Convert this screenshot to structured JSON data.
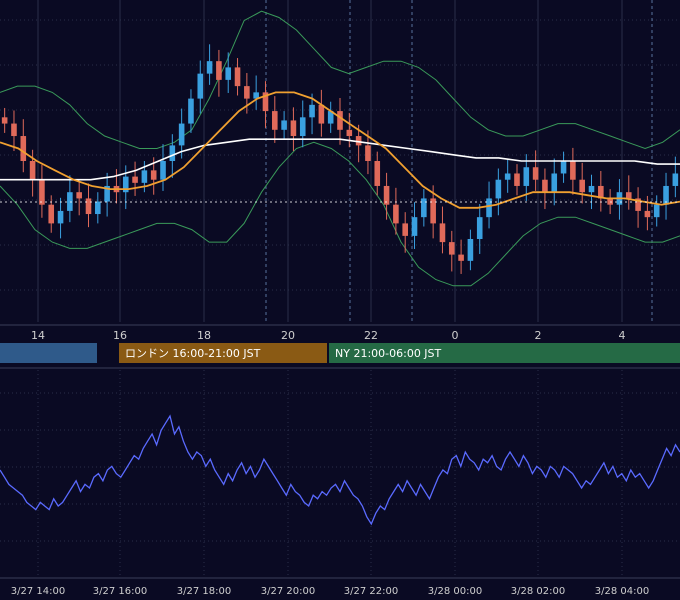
{
  "colors": {
    "background": "#0a0a23",
    "grid": "#2a2f4a",
    "candle_up": "#3aa0e0",
    "candle_down": "#e06a5a",
    "bollinger": "#3a9a5a",
    "ma_short": "#f0a030",
    "ma_long": "#ffffff",
    "oscillator": "#5a6aff",
    "asia_band": "#2f5a8a",
    "london_band": "#8a5a14",
    "ny_band": "#256a45"
  },
  "sessions": [
    {
      "label": "",
      "color": "#2f5a8a"
    },
    {
      "label": "ロンドン 16:00-21:00 JST",
      "color": "#8a5a14"
    },
    {
      "label": "NY 21:00-06:00 JST",
      "color": "#256a45"
    }
  ],
  "chart_data": [
    {
      "type": "candlestick",
      "x_ticks": [
        "14",
        "16",
        "18",
        "20",
        "22",
        "0",
        "2",
        "4"
      ],
      "close_series": [
        0.62,
        0.58,
        0.5,
        0.44,
        0.36,
        0.3,
        0.34,
        0.4,
        0.38,
        0.33,
        0.37,
        0.42,
        0.4,
        0.45,
        0.43,
        0.47,
        0.44,
        0.5,
        0.55,
        0.62,
        0.7,
        0.78,
        0.82,
        0.76,
        0.8,
        0.74,
        0.7,
        0.72,
        0.66,
        0.6,
        0.63,
        0.58,
        0.64,
        0.68,
        0.62,
        0.66,
        0.6,
        0.58,
        0.55,
        0.5,
        0.42,
        0.36,
        0.3,
        0.26,
        0.32,
        0.38,
        0.3,
        0.24,
        0.2,
        0.18,
        0.25,
        0.32,
        0.38,
        0.44,
        0.46,
        0.42,
        0.48,
        0.44,
        0.4,
        0.46,
        0.5,
        0.44,
        0.4,
        0.42,
        0.38,
        0.36,
        0.4,
        0.38,
        0.34,
        0.32,
        0.36,
        0.42,
        0.46
      ],
      "bollinger_upper": [
        0.72,
        0.74,
        0.74,
        0.72,
        0.68,
        0.62,
        0.58,
        0.56,
        0.54,
        0.54,
        0.56,
        0.6,
        0.7,
        0.82,
        0.95,
        0.98,
        0.96,
        0.92,
        0.86,
        0.8,
        0.78,
        0.8,
        0.82,
        0.82,
        0.8,
        0.76,
        0.7,
        0.64,
        0.6,
        0.58,
        0.58,
        0.6,
        0.62,
        0.62,
        0.6,
        0.58,
        0.56,
        0.54,
        0.56,
        0.6
      ],
      "bollinger_lower": [
        0.42,
        0.36,
        0.28,
        0.24,
        0.22,
        0.22,
        0.24,
        0.26,
        0.28,
        0.3,
        0.3,
        0.28,
        0.24,
        0.24,
        0.3,
        0.4,
        0.48,
        0.54,
        0.56,
        0.54,
        0.5,
        0.44,
        0.36,
        0.24,
        0.16,
        0.12,
        0.1,
        0.1,
        0.14,
        0.2,
        0.26,
        0.3,
        0.32,
        0.32,
        0.3,
        0.28,
        0.26,
        0.24,
        0.24,
        0.26
      ],
      "ma_short": [
        0.56,
        0.54,
        0.5,
        0.47,
        0.44,
        0.42,
        0.41,
        0.41,
        0.42,
        0.44,
        0.48,
        0.54,
        0.6,
        0.66,
        0.7,
        0.72,
        0.72,
        0.7,
        0.66,
        0.62,
        0.58,
        0.54,
        0.48,
        0.42,
        0.38,
        0.35,
        0.35,
        0.36,
        0.38,
        0.4,
        0.4,
        0.4,
        0.39,
        0.38,
        0.38,
        0.37,
        0.36,
        0.37
      ],
      "ma_long": [
        0.44,
        0.44,
        0.44,
        0.44,
        0.44,
        0.45,
        0.47,
        0.5,
        0.53,
        0.55,
        0.56,
        0.57,
        0.57,
        0.57,
        0.57,
        0.57,
        0.56,
        0.55,
        0.54,
        0.53,
        0.52,
        0.51,
        0.51,
        0.5,
        0.5,
        0.5,
        0.5,
        0.5,
        0.5,
        0.49,
        0.49
      ]
    },
    {
      "type": "line",
      "x_ticks": [
        "3/27 14:00",
        "3/27 16:00",
        "3/27 18:00",
        "3/27 20:00",
        "3/27 22:00",
        "3/28 00:00",
        "3/28 02:00",
        "3/28 04:00"
      ],
      "values": [
        50,
        46,
        42,
        40,
        38,
        36,
        32,
        30,
        28,
        32,
        30,
        28,
        34,
        30,
        32,
        36,
        40,
        44,
        38,
        42,
        40,
        46,
        48,
        44,
        50,
        52,
        48,
        46,
        50,
        54,
        58,
        56,
        62,
        66,
        70,
        64,
        72,
        76,
        80,
        70,
        74,
        66,
        60,
        56,
        60,
        58,
        52,
        56,
        50,
        46,
        42,
        48,
        44,
        50,
        54,
        48,
        52,
        46,
        50,
        56,
        52,
        48,
        44,
        40,
        36,
        42,
        38,
        36,
        32,
        30,
        36,
        34,
        38,
        36,
        40,
        42,
        38,
        44,
        40,
        36,
        34,
        30,
        24,
        20,
        26,
        30,
        28,
        34,
        38,
        42,
        38,
        44,
        40,
        36,
        42,
        38,
        34,
        40,
        46,
        50,
        48,
        56,
        58,
        52,
        60,
        56,
        54,
        50,
        56,
        54,
        58,
        52,
        50,
        56,
        60,
        56,
        52,
        58,
        54,
        48,
        52,
        50,
        46,
        52,
        50,
        46,
        52,
        50,
        48,
        44,
        40,
        44,
        42,
        46,
        50,
        54,
        48,
        52,
        46,
        48,
        44,
        50,
        46,
        48,
        44,
        40,
        44,
        50,
        56,
        62,
        58,
        64,
        60
      ]
    }
  ]
}
